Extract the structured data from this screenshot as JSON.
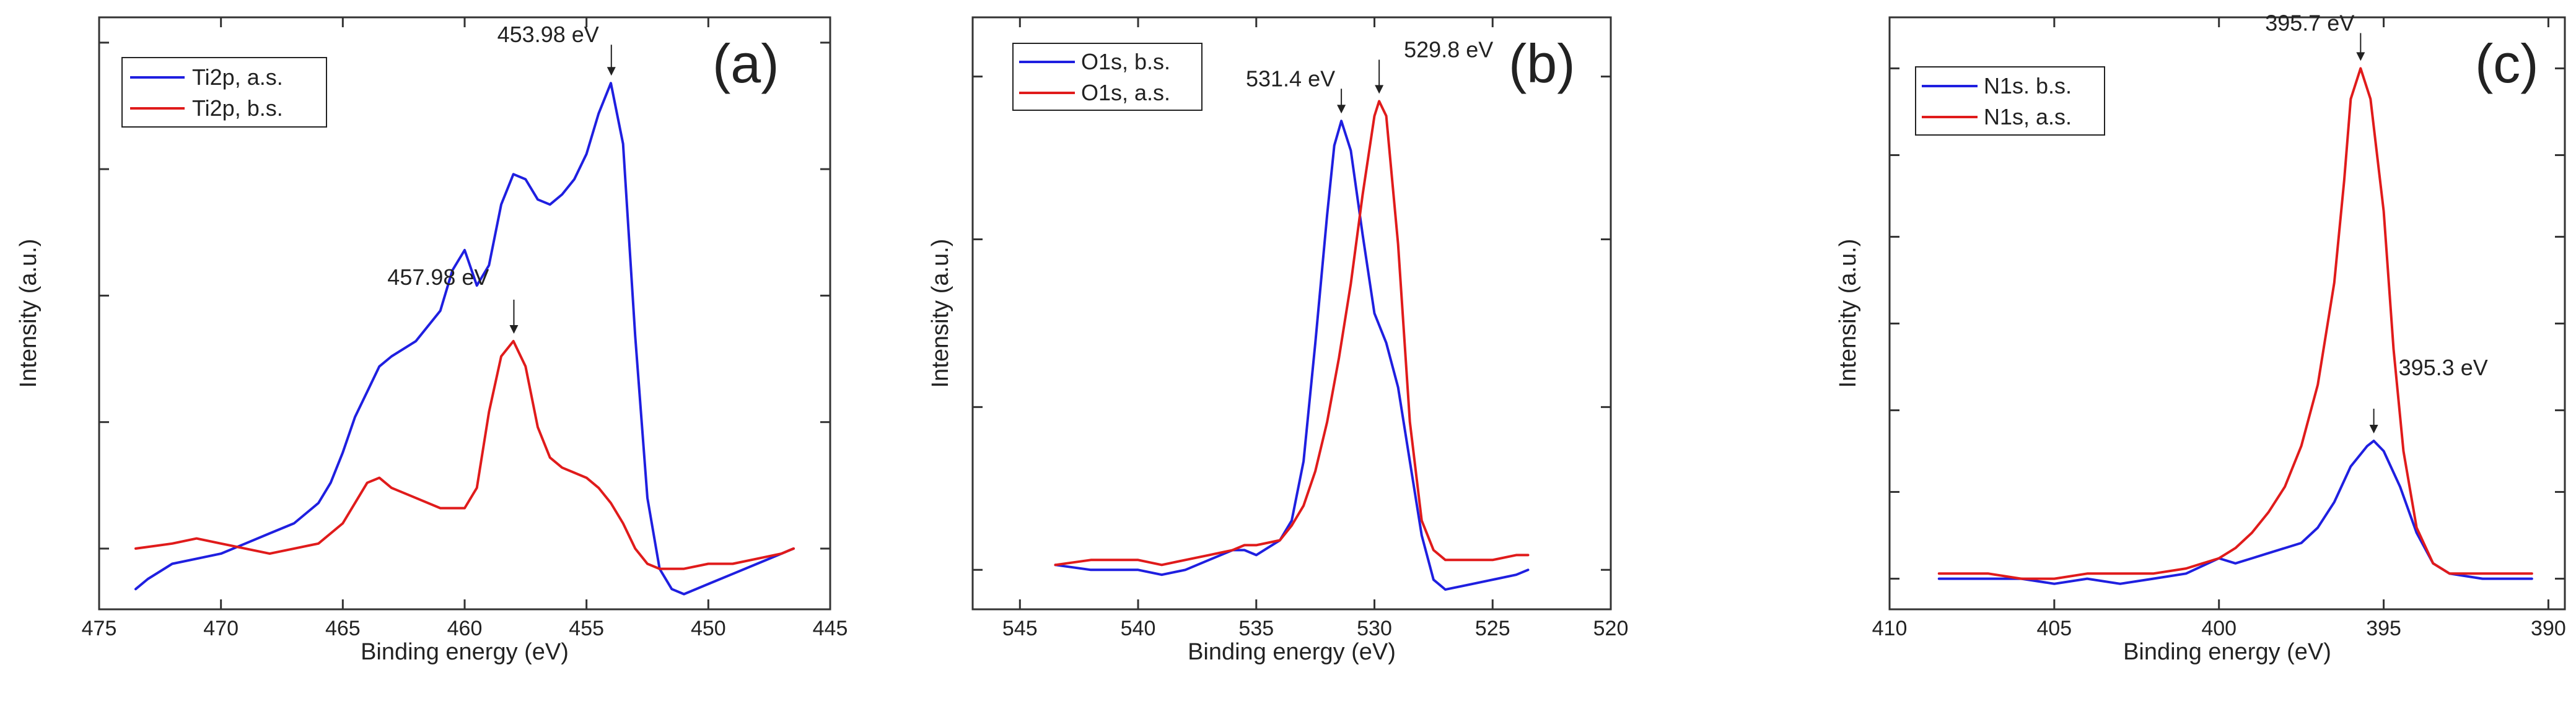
{
  "chart_data": [
    {
      "type": "line",
      "panel_label": "(a)",
      "xlabel": "Binding energy (eV)",
      "ylabel": "Intensity (a.u.)",
      "xlim": [
        475,
        445
      ],
      "ylim": [
        -0.12,
        1.05
      ],
      "x_ticks": [
        475,
        470,
        465,
        460,
        455,
        450,
        445
      ],
      "y_ticks": [
        0,
        0.25,
        0.5,
        0.75,
        1.0
      ],
      "legend": "top-left",
      "series": [
        {
          "name": "Ti2p, a.s.",
          "color": "#1f1fe0",
          "x": [
            473.5,
            473,
            472,
            471,
            470,
            469,
            468,
            467,
            466,
            465.5,
            465,
            464.5,
            464,
            463.5,
            463,
            462,
            461,
            460.5,
            460,
            459.5,
            459,
            458.5,
            458,
            457.5,
            457,
            456.5,
            456,
            455.5,
            455,
            454.5,
            454,
            453.5,
            453,
            452.5,
            452,
            451.5,
            451,
            450,
            449,
            448,
            447,
            446.5
          ],
          "y": [
            -0.08,
            -0.06,
            -0.03,
            -0.02,
            -0.01,
            0.01,
            0.03,
            0.05,
            0.09,
            0.13,
            0.19,
            0.26,
            0.31,
            0.36,
            0.38,
            0.41,
            0.47,
            0.55,
            0.59,
            0.52,
            0.56,
            0.68,
            0.74,
            0.73,
            0.69,
            0.68,
            0.7,
            0.73,
            0.78,
            0.86,
            0.92,
            0.8,
            0.42,
            0.1,
            -0.04,
            -0.08,
            -0.09,
            -0.07,
            -0.05,
            -0.03,
            -0.01,
            0.0
          ]
        },
        {
          "name": "Ti2p, b.s.",
          "color": "#e01b1b",
          "x": [
            473.5,
            472,
            471,
            470,
            469,
            468,
            467,
            466,
            465,
            464,
            463.5,
            463,
            462,
            461,
            460,
            459.5,
            459,
            458.5,
            458,
            457.5,
            457,
            456.5,
            456,
            455.5,
            455,
            454.5,
            454,
            453.5,
            453,
            452.5,
            452,
            451.5,
            451,
            450,
            449,
            448,
            447,
            446.5
          ],
          "y": [
            0.0,
            0.01,
            0.02,
            0.01,
            0.0,
            -0.01,
            0.0,
            0.01,
            0.05,
            0.13,
            0.14,
            0.12,
            0.1,
            0.08,
            0.08,
            0.12,
            0.27,
            0.38,
            0.41,
            0.36,
            0.24,
            0.18,
            0.16,
            0.15,
            0.14,
            0.12,
            0.09,
            0.05,
            0.0,
            -0.03,
            -0.04,
            -0.04,
            -0.04,
            -0.03,
            -0.03,
            -0.02,
            -0.01,
            0.0
          ]
        }
      ],
      "annotations": [
        {
          "text": "453.98 eV",
          "x": 453.98,
          "y": 0.92
        },
        {
          "text": "457.98 eV",
          "x": 457.98,
          "y": 0.41
        }
      ]
    },
    {
      "type": "line",
      "panel_label": "(b)",
      "xlabel": "Binding energy (eV)",
      "ylabel": "Intensity (a.u.)",
      "xlim": [
        547,
        520
      ],
      "ylim": [
        -0.08,
        1.12
      ],
      "x_ticks": [
        545,
        540,
        535,
        530,
        525,
        520
      ],
      "y_ticks": [
        0,
        0.33,
        0.67,
        1.0
      ],
      "legend": "top-left",
      "series": [
        {
          "name": "O1s, b.s.",
          "color": "#1f1fe0",
          "x": [
            543.5,
            542,
            541,
            540,
            539,
            538,
            537,
            536,
            535.5,
            535,
            534,
            533.5,
            533,
            532.5,
            532,
            531.7,
            531.4,
            531,
            530.5,
            530,
            529.5,
            529,
            528.5,
            528,
            527.5,
            527,
            526,
            525,
            524,
            523.5
          ],
          "y": [
            0.01,
            0.0,
            0.0,
            0.0,
            -0.01,
            0.0,
            0.02,
            0.04,
            0.04,
            0.03,
            0.06,
            0.1,
            0.22,
            0.46,
            0.72,
            0.86,
            0.91,
            0.85,
            0.68,
            0.52,
            0.46,
            0.37,
            0.22,
            0.07,
            -0.02,
            -0.04,
            -0.03,
            -0.02,
            -0.01,
            0.0
          ]
        },
        {
          "name": "O1s, a.s.",
          "color": "#e01b1b",
          "x": [
            543.5,
            542,
            541,
            540,
            539,
            538,
            537,
            536,
            535.5,
            535,
            534,
            533.5,
            533,
            532.5,
            532,
            531.5,
            531,
            530.5,
            530,
            529.8,
            529.5,
            529,
            528.5,
            528,
            527.5,
            527,
            526,
            525,
            524,
            523.5
          ],
          "y": [
            0.01,
            0.02,
            0.02,
            0.02,
            0.01,
            0.02,
            0.03,
            0.04,
            0.05,
            0.05,
            0.06,
            0.09,
            0.13,
            0.2,
            0.3,
            0.43,
            0.58,
            0.76,
            0.92,
            0.95,
            0.92,
            0.66,
            0.3,
            0.1,
            0.04,
            0.02,
            0.02,
            0.02,
            0.03,
            0.03
          ]
        }
      ],
      "annotations": [
        {
          "text": "531.4 eV",
          "x": 531.4,
          "y": 0.91
        },
        {
          "text": "529.8 eV",
          "x": 529.8,
          "y": 0.95
        }
      ]
    },
    {
      "type": "line",
      "panel_label": "(c)",
      "xlabel": "Binding energy (eV)",
      "ylabel": "Intensity (a.u.)",
      "xlim": [
        410,
        389.5
      ],
      "ylim": [
        -0.06,
        1.1
      ],
      "x_ticks": [
        410,
        405,
        400,
        395,
        390
      ],
      "y_ticks": [
        0,
        0.17,
        0.33,
        0.5,
        0.67,
        0.83,
        1.0
      ],
      "legend": "top-left",
      "series": [
        {
          "name": "N1s. b.s.",
          "color": "#1f1fe0",
          "x": [
            408.5,
            407,
            406,
            405,
            404,
            403,
            402,
            401,
            400,
            399.5,
            399,
            398.5,
            398,
            397.5,
            397,
            396.5,
            396,
            395.5,
            395.3,
            395,
            394.5,
            394,
            393.5,
            393,
            392,
            391,
            390.5
          ],
          "y": [
            0.0,
            0.0,
            0.0,
            -0.01,
            0.0,
            -0.01,
            0.0,
            0.01,
            0.04,
            0.03,
            0.04,
            0.05,
            0.06,
            0.07,
            0.1,
            0.15,
            0.22,
            0.26,
            0.27,
            0.25,
            0.18,
            0.09,
            0.03,
            0.01,
            0.0,
            0.0,
            0.0
          ]
        },
        {
          "name": "N1s, a.s.",
          "color": "#e01b1b",
          "x": [
            408.5,
            407,
            406,
            405,
            404,
            403,
            402,
            401,
            400,
            399.5,
            399,
            398.5,
            398,
            397.5,
            397,
            396.5,
            396.2,
            396,
            395.7,
            395.4,
            395,
            394.7,
            394.4,
            394,
            393.5,
            393,
            392,
            391,
            390.5
          ],
          "y": [
            0.01,
            0.01,
            0.0,
            0.0,
            0.01,
            0.01,
            0.01,
            0.02,
            0.04,
            0.06,
            0.09,
            0.13,
            0.18,
            0.26,
            0.38,
            0.58,
            0.78,
            0.94,
            1.0,
            0.94,
            0.72,
            0.45,
            0.25,
            0.1,
            0.03,
            0.01,
            0.01,
            0.01,
            0.01
          ]
        }
      ],
      "annotations": [
        {
          "text": "395.7 eV",
          "x": 395.7,
          "y": 1.0
        },
        {
          "text": "395.3 eV",
          "x": 395.3,
          "y": 0.27
        }
      ]
    }
  ]
}
